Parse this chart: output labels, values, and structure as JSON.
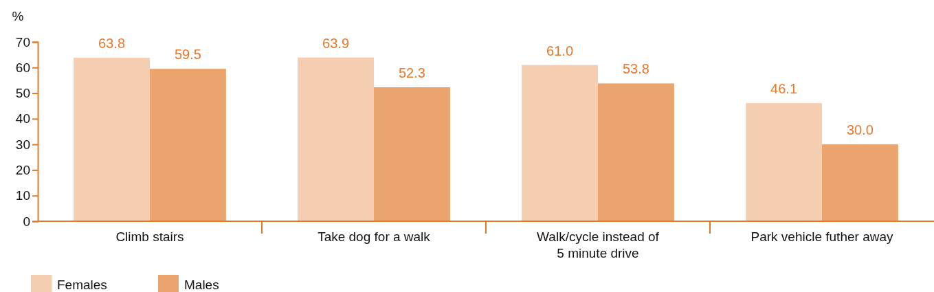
{
  "chart_data": {
    "type": "bar",
    "ylabel": "%",
    "categories": [
      "Climb stairs",
      "Take dog for a walk",
      "Walk/cycle instead of\n5 minute drive",
      "Park vehicle futher away"
    ],
    "series": [
      {
        "name": "Females",
        "color": "#f5cdb0",
        "values": [
          63.8,
          63.9,
          61.0,
          46.1
        ],
        "value_labels": [
          "63.8",
          "63.9",
          "61.0",
          "46.1"
        ]
      },
      {
        "name": "Males",
        "color": "#eba46e",
        "values": [
          59.5,
          52.3,
          53.8,
          30.0
        ],
        "value_labels": [
          "59.5",
          "52.3",
          "53.8",
          "30.0"
        ]
      }
    ],
    "ylim": [
      0,
      70
    ],
    "yticks": [
      0,
      10,
      20,
      30,
      40,
      50,
      60,
      70
    ],
    "legend": "bottom left",
    "grid": false
  }
}
